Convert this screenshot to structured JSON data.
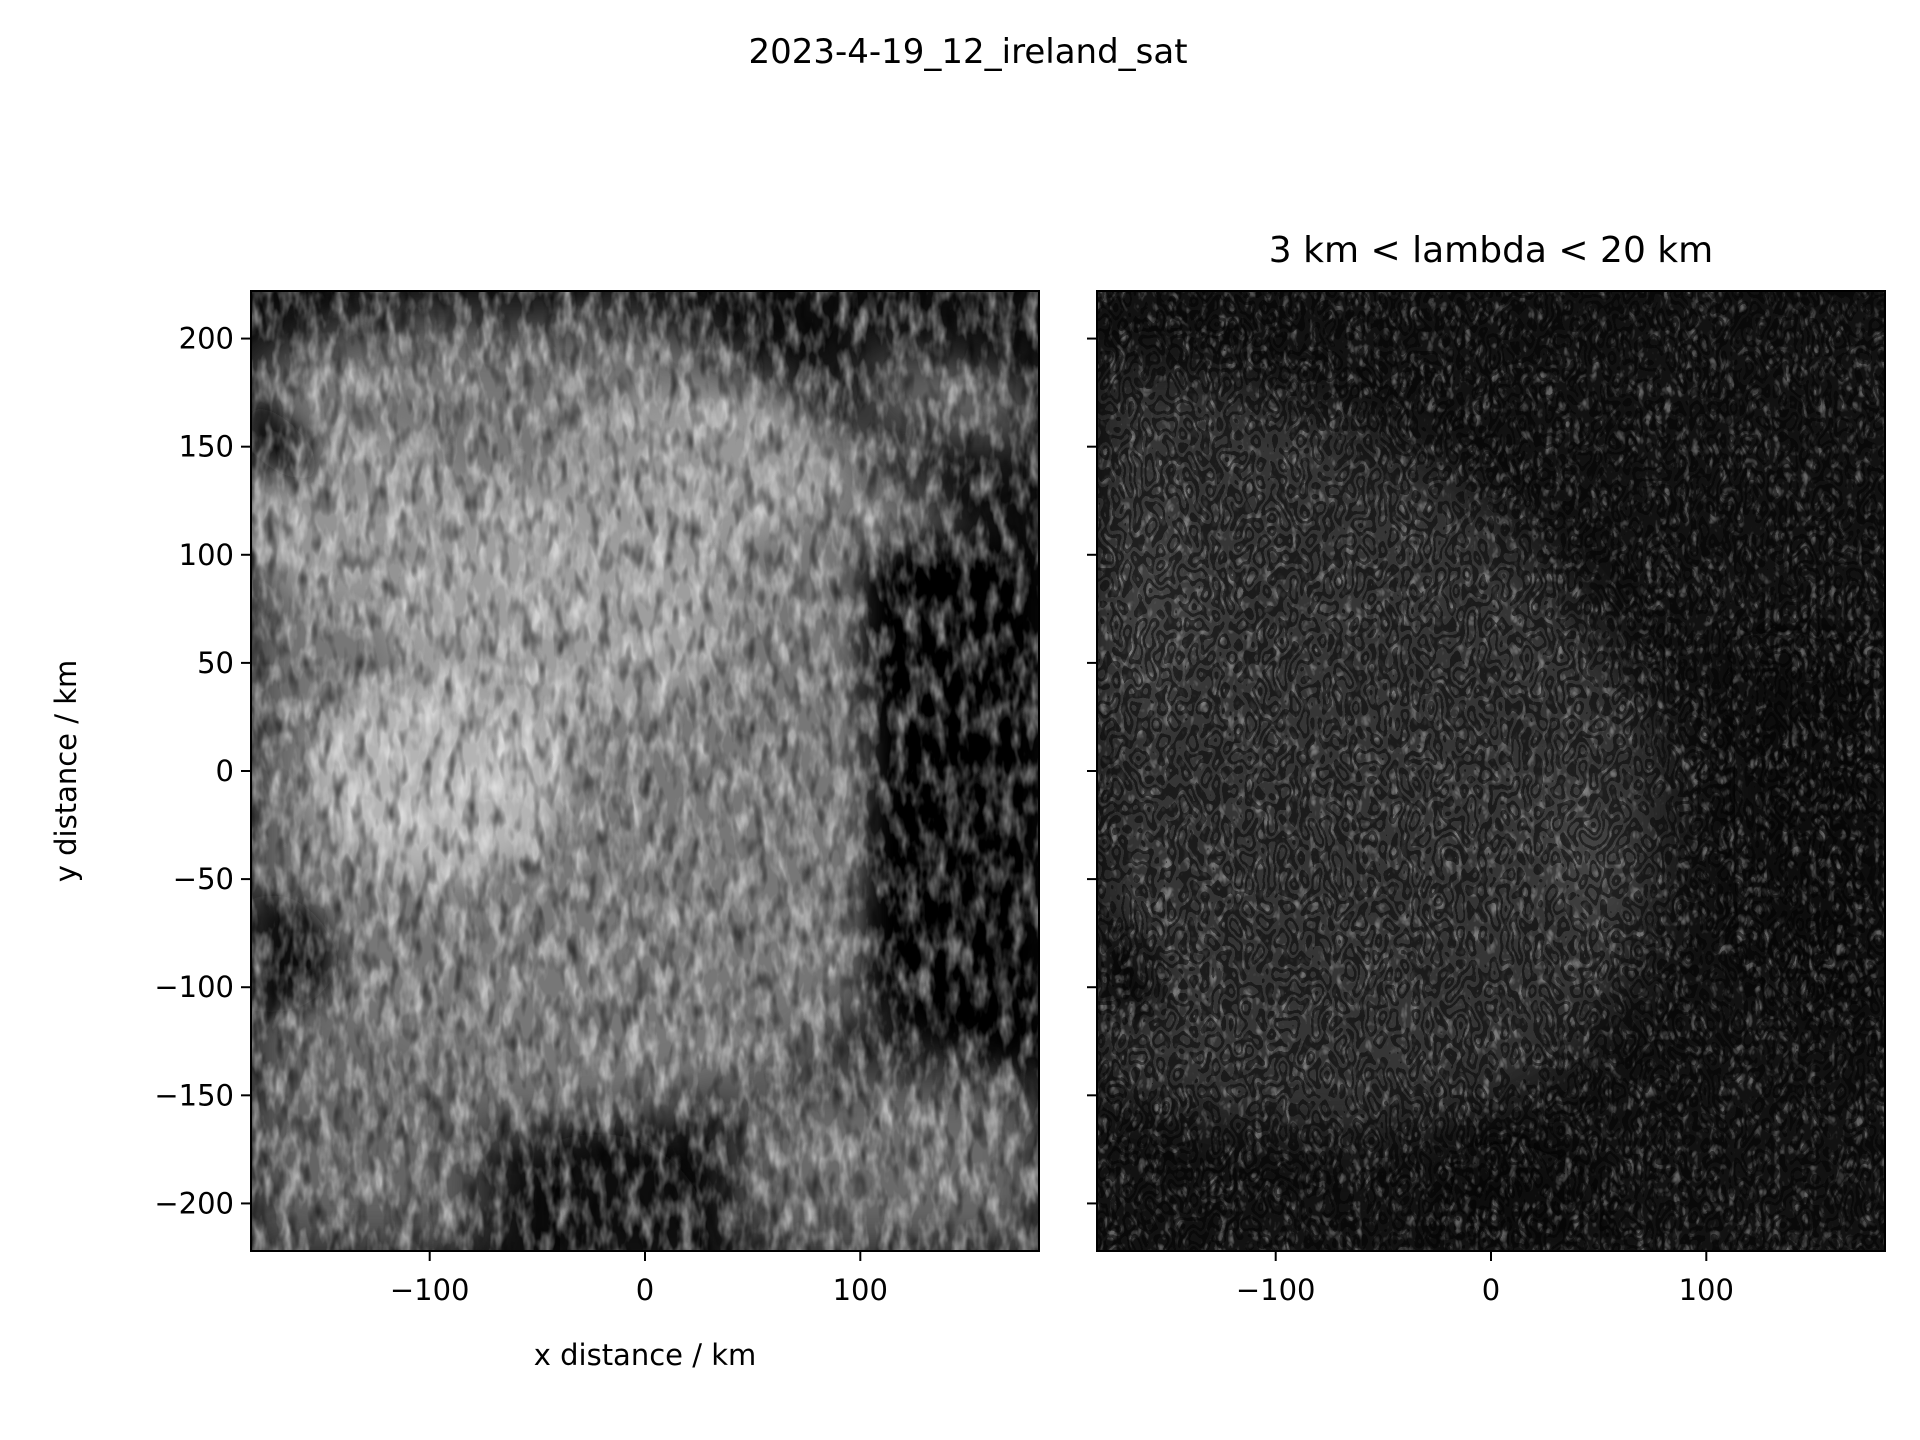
{
  "figure": {
    "suptitle": "2023-4-19_12_ireland_sat"
  },
  "chart_data": [
    {
      "type": "heatmap",
      "title": "",
      "xlabel": "x distance / km",
      "ylabel": "y distance / km",
      "xlim": [
        -183,
        183
      ],
      "ylim": [
        -222,
        222
      ],
      "xticks": [
        -100,
        0,
        100
      ],
      "xtick_labels": [
        "−100",
        "0",
        "100"
      ],
      "yticks": [
        200,
        150,
        100,
        50,
        0,
        -50,
        -100,
        -150,
        -200
      ],
      "ytick_labels": [
        "200",
        "150",
        "100",
        "50",
        "0",
        "−50",
        "−100",
        "−150",
        "−200"
      ],
      "colormap": "gray",
      "description_values": "satellite reflectance image"
    },
    {
      "type": "heatmap",
      "title": "3 km < lambda < 20 km",
      "xlabel": "",
      "ylabel": "",
      "xlim": [
        -183,
        183
      ],
      "ylim": [
        -222,
        222
      ],
      "xticks": [
        -100,
        0,
        100
      ],
      "xtick_labels": [
        "−100",
        "0",
        "100"
      ],
      "yticks": [
        200,
        150,
        100,
        50,
        0,
        -50,
        -100,
        -150,
        -200
      ],
      "ytick_labels": [],
      "colormap": "gray"
    }
  ]
}
